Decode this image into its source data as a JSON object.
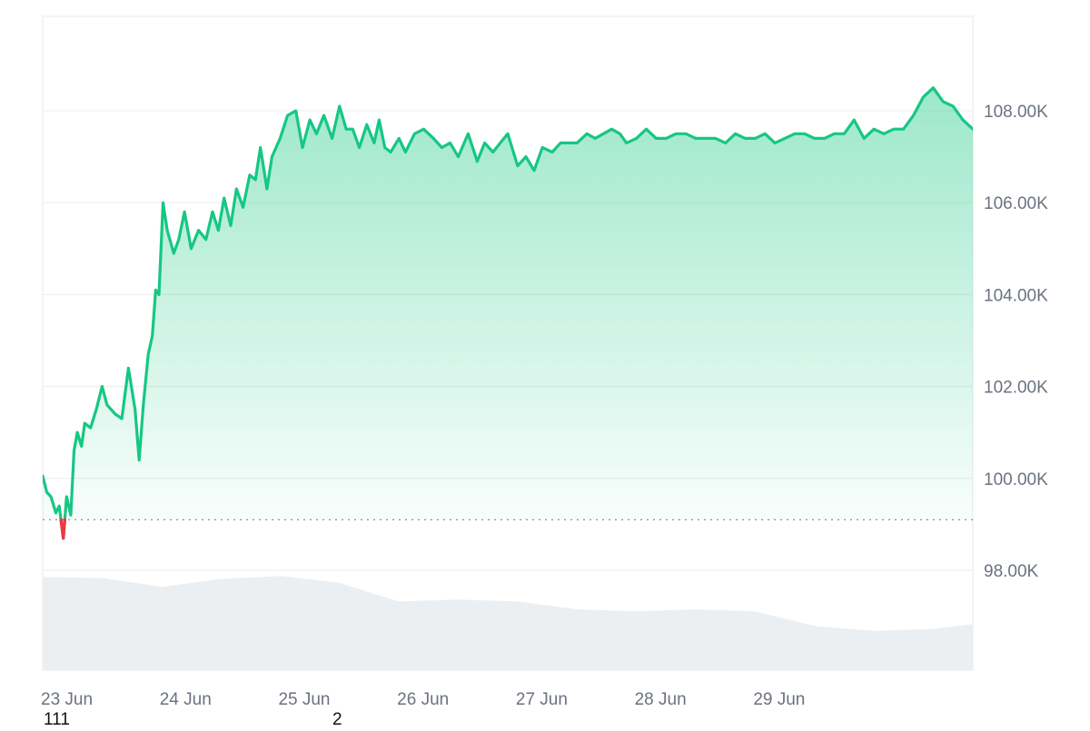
{
  "chart_data": {
    "type": "area",
    "title": "",
    "xlabel": "",
    "ylabel": "",
    "x_ticks": [
      "23 Jun",
      "24 Jun",
      "25 Jun",
      "26 Jun",
      "27 Jun",
      "28 Jun",
      "29 Jun"
    ],
    "y_ticks": [
      "98.00K",
      "100.00K",
      "102.00K",
      "104.00K",
      "106.00K",
      "108.00K"
    ],
    "y_tick_values": [
      98000,
      100000,
      102000,
      104000,
      106000,
      108000
    ],
    "ylim": [
      96000,
      110000
    ],
    "xlim_days": [
      "23 Jun 00:00",
      "30 Jun 20:00"
    ],
    "baseline": 99100,
    "grid": true,
    "legend": "none",
    "colors": {
      "above": "#16c784",
      "below": "#ea3943",
      "volume": "#eceff1",
      "grid": "#edf0f2",
      "axis_text": "#6b7280"
    },
    "series": [
      {
        "x": [
          "23 Jun 00:00",
          "23 Jun 00:50",
          "23 Jun 01:40",
          "23 Jun 02:40",
          "23 Jun 03:20",
          "23 Jun 04:10",
          "23 Jun 04:50",
          "23 Jun 05:40",
          "23 Jun 06:20",
          "23 Jun 07:00",
          "23 Jun 07:50",
          "23 Jun 08:30",
          "23 Jun 09:40",
          "23 Jun 10:50",
          "23 Jun 12:00",
          "23 Jun 13:00",
          "23 Jun 14:40",
          "23 Jun 16:00",
          "23 Jun 17:20",
          "23 Jun 18:40",
          "23 Jun 19:30",
          "23 Jun 20:20",
          "23 Jun 21:20",
          "23 Jun 22:10",
          "23 Jun 22:50",
          "23 Jun 23:30",
          "24 Jun 00:20",
          "24 Jun 01:10",
          "24 Jun 02:30",
          "24 Jun 03:30",
          "24 Jun 04:40",
          "24 Jun 06:00",
          "24 Jun 07:30",
          "24 Jun 09:00",
          "24 Jun 10:20",
          "24 Jun 11:30",
          "24 Jun 12:40",
          "24 Jun 14:00",
          "24 Jun 15:10",
          "24 Jun 16:30",
          "24 Jun 17:50",
          "24 Jun 19:00",
          "24 Jun 20:00",
          "24 Jun 21:20",
          "24 Jun 22:20",
          "25 Jun 00:00",
          "25 Jun 01:30",
          "25 Jun 03:10",
          "25 Jun 04:30",
          "25 Jun 06:00",
          "25 Jun 07:20",
          "25 Jun 08:50",
          "25 Jun 10:30",
          "25 Jun 12:00",
          "25 Jun 13:20",
          "25 Jun 14:40",
          "25 Jun 16:00",
          "25 Jun 17:30",
          "25 Jun 19:00",
          "25 Jun 20:00",
          "25 Jun 21:10",
          "25 Jun 22:20",
          "26 Jun 00:00",
          "26 Jun 01:20",
          "26 Jun 03:10",
          "26 Jun 05:00",
          "26 Jun 07:00",
          "26 Jun 08:40",
          "26 Jun 10:20",
          "26 Jun 12:00",
          "26 Jun 14:00",
          "26 Jun 15:50",
          "26 Jun 17:20",
          "26 Jun 19:00",
          "26 Jun 20:30",
          "26 Jun 22:00",
          "27 Jun 00:00",
          "27 Jun 01:40",
          "27 Jun 03:20",
          "27 Jun 05:00",
          "27 Jun 07:00",
          "27 Jun 08:40",
          "27 Jun 10:20",
          "27 Jun 12:00",
          "27 Jun 14:00",
          "27 Jun 15:40",
          "27 Jun 17:20",
          "27 Jun 19:00",
          "27 Jun 20:40",
          "27 Jun 22:00",
          "28 Jun 00:00",
          "28 Jun 02:00",
          "28 Jun 04:00",
          "28 Jun 06:00",
          "28 Jun 08:00",
          "28 Jun 10:00",
          "28 Jun 12:00",
          "28 Jun 14:00",
          "28 Jun 16:00",
          "28 Jun 18:00",
          "28 Jun 20:00",
          "28 Jun 22:00",
          "29 Jun 00:00",
          "29 Jun 02:00",
          "29 Jun 04:00",
          "29 Jun 06:00",
          "29 Jun 08:00",
          "29 Jun 10:00",
          "29 Jun 12:00",
          "29 Jun 14:00",
          "29 Jun 16:00",
          "29 Jun 18:00",
          "29 Jun 20:00",
          "29 Jun 22:00",
          "30 Jun 00:00",
          "30 Jun 02:00",
          "30 Jun 04:00",
          "30 Jun 06:00",
          "30 Jun 08:00",
          "30 Jun 10:00",
          "30 Jun 12:00",
          "30 Jun 14:00",
          "30 Jun 16:00",
          "30 Jun 18:00",
          "30 Jun 20:00"
        ],
        "values": [
          100050,
          99700,
          99600,
          99250,
          99400,
          98700,
          99600,
          99200,
          100600,
          101000,
          100700,
          101200,
          101100,
          101500,
          102000,
          101600,
          101400,
          101300,
          102400,
          101500,
          100400,
          101600,
          102700,
          103100,
          104100,
          104000,
          106000,
          105400,
          104900,
          105200,
          105800,
          105000,
          105400,
          105200,
          105800,
          105400,
          106100,
          105500,
          106300,
          105900,
          106600,
          106500,
          107200,
          106300,
          107000,
          107400,
          107900,
          108000,
          107200,
          107800,
          107500,
          107900,
          107400,
          108100,
          107600,
          107600,
          107200,
          107700,
          107300,
          107800,
          107200,
          107100,
          107400,
          107100,
          107500,
          107600,
          107400,
          107200,
          107300,
          107000,
          107500,
          106900,
          107300,
          107100,
          107300,
          107500,
          106800,
          107000,
          106700,
          107200,
          107100,
          107300,
          107300,
          107300,
          107500,
          107400,
          107500,
          107600,
          107500,
          107300,
          107400,
          107600,
          107400,
          107400,
          107500,
          107500,
          107400,
          107400,
          107400,
          107300,
          107500,
          107400,
          107400,
          107500,
          107300,
          107400,
          107500,
          107500,
          107400,
          107400,
          107500,
          107500,
          107800,
          107400,
          107600,
          107500,
          107600,
          107600,
          107900,
          108300,
          108500,
          108200,
          108100,
          107800,
          107600
        ]
      }
    ],
    "volume": {
      "x": [
        "23 Jun 00:00",
        "23 Jun 12:00",
        "24 Jun 00:00",
        "24 Jun 12:00",
        "25 Jun 00:00",
        "25 Jun 12:00",
        "26 Jun 00:00",
        "26 Jun 12:00",
        "27 Jun 00:00",
        "27 Jun 12:00",
        "28 Jun 00:00",
        "28 Jun 12:00",
        "29 Jun 00:00",
        "29 Jun 12:00",
        "30 Jun 00:00",
        "30 Jun 12:00",
        "30 Jun 20:00"
      ],
      "values": [
        0.95,
        0.94,
        0.85,
        0.93,
        0.96,
        0.89,
        0.7,
        0.72,
        0.7,
        0.62,
        0.6,
        0.62,
        0.6,
        0.45,
        0.4,
        0.42,
        0.47
      ]
    }
  },
  "footnotes": [
    "111",
    "2"
  ]
}
